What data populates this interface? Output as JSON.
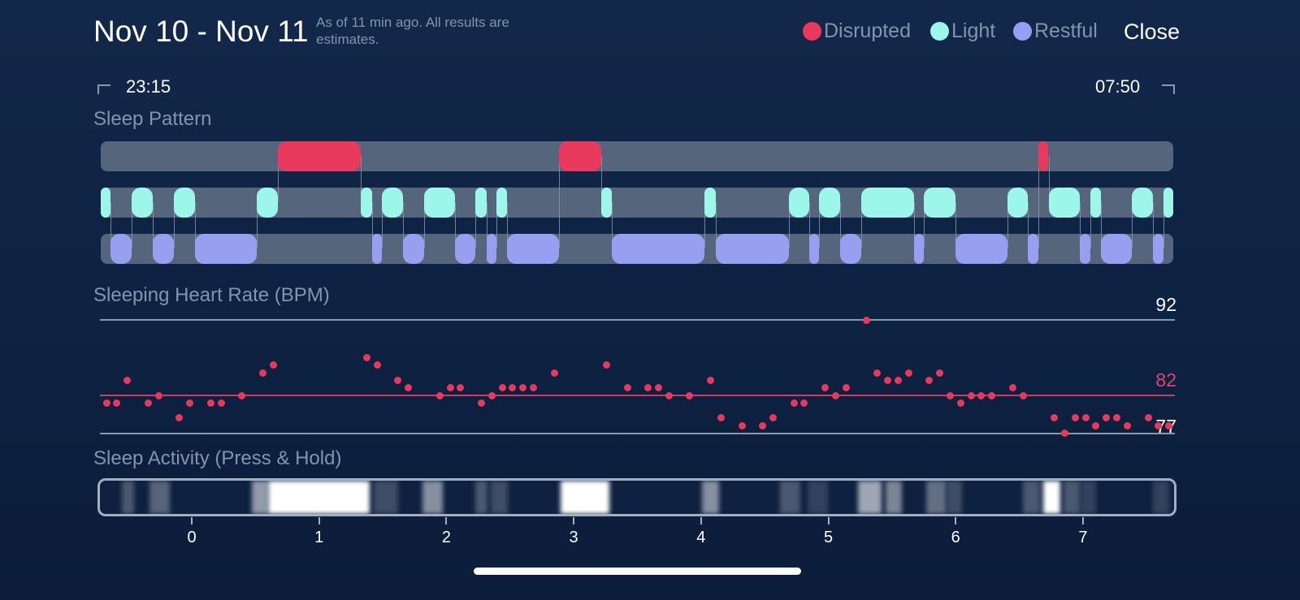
{
  "header": {
    "title": "Nov 10 - Nov 11",
    "subtitle": "As of 11 min ago. All results are estimates.",
    "close_label": "Close"
  },
  "legend": [
    {
      "label": "Disrupted",
      "color": "#e93a5d"
    },
    {
      "label": "Light",
      "color": "#9cf6ea"
    },
    {
      "label": "Restful",
      "color": "#979ff0"
    }
  ],
  "time_range": {
    "start": "23:15",
    "end": "07:50"
  },
  "sections": {
    "sleep_pattern": "Sleep Pattern",
    "heart_rate": "Sleeping Heart Rate (BPM)",
    "activity": "Sleep Activity (Press & Hold)"
  },
  "chart_data": [
    {
      "type": "timeline",
      "title": "Sleep Pattern",
      "x_unit": "hours",
      "xlim": [
        -0.715,
        7.709
      ],
      "segments": {
        "disrupted": [
          [
            0.676,
            1.327
          ],
          [
            2.885,
            3.216
          ],
          [
            6.65,
            6.726
          ]
        ],
        "light": [
          [
            -0.715,
            -0.638
          ],
          [
            -0.472,
            -0.306
          ],
          [
            -0.14,
            0.026
          ],
          [
            0.511,
            0.676
          ],
          [
            1.327,
            1.417
          ],
          [
            1.493,
            1.659
          ],
          [
            1.825,
            2.068
          ],
          [
            2.227,
            2.317
          ],
          [
            2.393,
            2.476
          ],
          [
            3.216,
            3.299
          ],
          [
            4.027,
            4.116
          ],
          [
            4.691,
            4.85
          ],
          [
            4.927,
            5.093
          ],
          [
            5.258,
            5.673
          ],
          [
            5.75,
            5.999
          ],
          [
            6.407,
            6.567
          ],
          [
            6.733,
            6.975
          ],
          [
            7.058,
            7.141
          ],
          [
            7.384,
            7.55
          ],
          [
            7.633,
            7.709
          ]
        ],
        "restful": [
          [
            -0.638,
            -0.472
          ],
          [
            -0.306,
            -0.14
          ],
          [
            0.026,
            0.511
          ],
          [
            1.417,
            1.493
          ],
          [
            1.659,
            1.825
          ],
          [
            2.068,
            2.227
          ],
          [
            2.317,
            2.393
          ],
          [
            2.476,
            2.885
          ],
          [
            3.299,
            4.027
          ],
          [
            4.116,
            4.691
          ],
          [
            4.85,
            4.927
          ],
          [
            5.093,
            5.258
          ],
          [
            5.673,
            5.75
          ],
          [
            5.999,
            6.407
          ],
          [
            6.567,
            6.65
          ],
          [
            6.975,
            7.058
          ],
          [
            7.141,
            7.384
          ],
          [
            7.55,
            7.633
          ]
        ]
      }
    },
    {
      "type": "scatter",
      "title": "Sleeping Heart Rate (BPM)",
      "sample_interval_min": 5,
      "sample_count": 103,
      "ylim": [
        77,
        92
      ],
      "reference_lines": [
        {
          "value": 92,
          "label": "92",
          "color": "#8a98ab"
        },
        {
          "value": 82,
          "label": "82",
          "color": "#c8405e"
        },
        {
          "value": 77,
          "label": "77",
          "color": "#8a98ab"
        }
      ],
      "points": [
        [
          0,
          81
        ],
        [
          1,
          81
        ],
        [
          2,
          84
        ],
        [
          4,
          81
        ],
        [
          5,
          82
        ],
        [
          7,
          79
        ],
        [
          8,
          81
        ],
        [
          10,
          81
        ],
        [
          11,
          81
        ],
        [
          13,
          82
        ],
        [
          15,
          85
        ],
        [
          16,
          86
        ],
        [
          25,
          87
        ],
        [
          26,
          86
        ],
        [
          28,
          84
        ],
        [
          29,
          83
        ],
        [
          32,
          82
        ],
        [
          33,
          83
        ],
        [
          34,
          83
        ],
        [
          36,
          81
        ],
        [
          37,
          82
        ],
        [
          38,
          83
        ],
        [
          39,
          83
        ],
        [
          40,
          83
        ],
        [
          41,
          83
        ],
        [
          43,
          85
        ],
        [
          48,
          86
        ],
        [
          50,
          83
        ],
        [
          52,
          83
        ],
        [
          53,
          83
        ],
        [
          54,
          82
        ],
        [
          56,
          82
        ],
        [
          58,
          84
        ],
        [
          59,
          79
        ],
        [
          61,
          78
        ],
        [
          63,
          78
        ],
        [
          64,
          79
        ],
        [
          66,
          81
        ],
        [
          67,
          81
        ],
        [
          69,
          83
        ],
        [
          70,
          82
        ],
        [
          71,
          83
        ],
        [
          73,
          92
        ],
        [
          74,
          85
        ],
        [
          75,
          84
        ],
        [
          76,
          84
        ],
        [
          77,
          85
        ],
        [
          79,
          84
        ],
        [
          80,
          85
        ],
        [
          81,
          82
        ],
        [
          82,
          81
        ],
        [
          83,
          82
        ],
        [
          84,
          82
        ],
        [
          85,
          82
        ],
        [
          87,
          83
        ],
        [
          88,
          82
        ],
        [
          91,
          79
        ],
        [
          92,
          77
        ],
        [
          93,
          79
        ],
        [
          94,
          79
        ],
        [
          95,
          78
        ],
        [
          96,
          79
        ],
        [
          97,
          79
        ],
        [
          98,
          78
        ],
        [
          100,
          79
        ],
        [
          101,
          78
        ],
        [
          102,
          78
        ]
      ]
    },
    {
      "type": "heatmap",
      "title": "Sleep Activity (Press & Hold)",
      "x_unit": "hours",
      "xticks": [
        "0",
        "1",
        "2",
        "3",
        "4",
        "5",
        "6",
        "7"
      ],
      "bands": [
        [
          -0.55,
          -0.45,
          0.25
        ],
        [
          -0.33,
          -0.17,
          0.3
        ],
        [
          0.47,
          0.6,
          0.55
        ],
        [
          0.6,
          1.4,
          1
        ],
        [
          1.43,
          1.62,
          0.2
        ],
        [
          1.81,
          1.97,
          0.5
        ],
        [
          2.23,
          2.32,
          0.25
        ],
        [
          2.35,
          2.48,
          0.2
        ],
        [
          2.9,
          3.28,
          1
        ],
        [
          4.01,
          4.14,
          0.5
        ],
        [
          4.62,
          4.78,
          0.25
        ],
        [
          4.84,
          5.0,
          0.15
        ],
        [
          5.23,
          5.42,
          0.6
        ],
        [
          5.45,
          5.58,
          0.45
        ],
        [
          5.77,
          5.93,
          0.35
        ],
        [
          5.93,
          6.05,
          0.2
        ],
        [
          6.53,
          6.66,
          0.25
        ],
        [
          6.69,
          6.82,
          1
        ],
        [
          6.85,
          6.98,
          0.25
        ],
        [
          6.98,
          7.1,
          0.15
        ],
        [
          7.55,
          7.68,
          0.15
        ]
      ]
    }
  ]
}
